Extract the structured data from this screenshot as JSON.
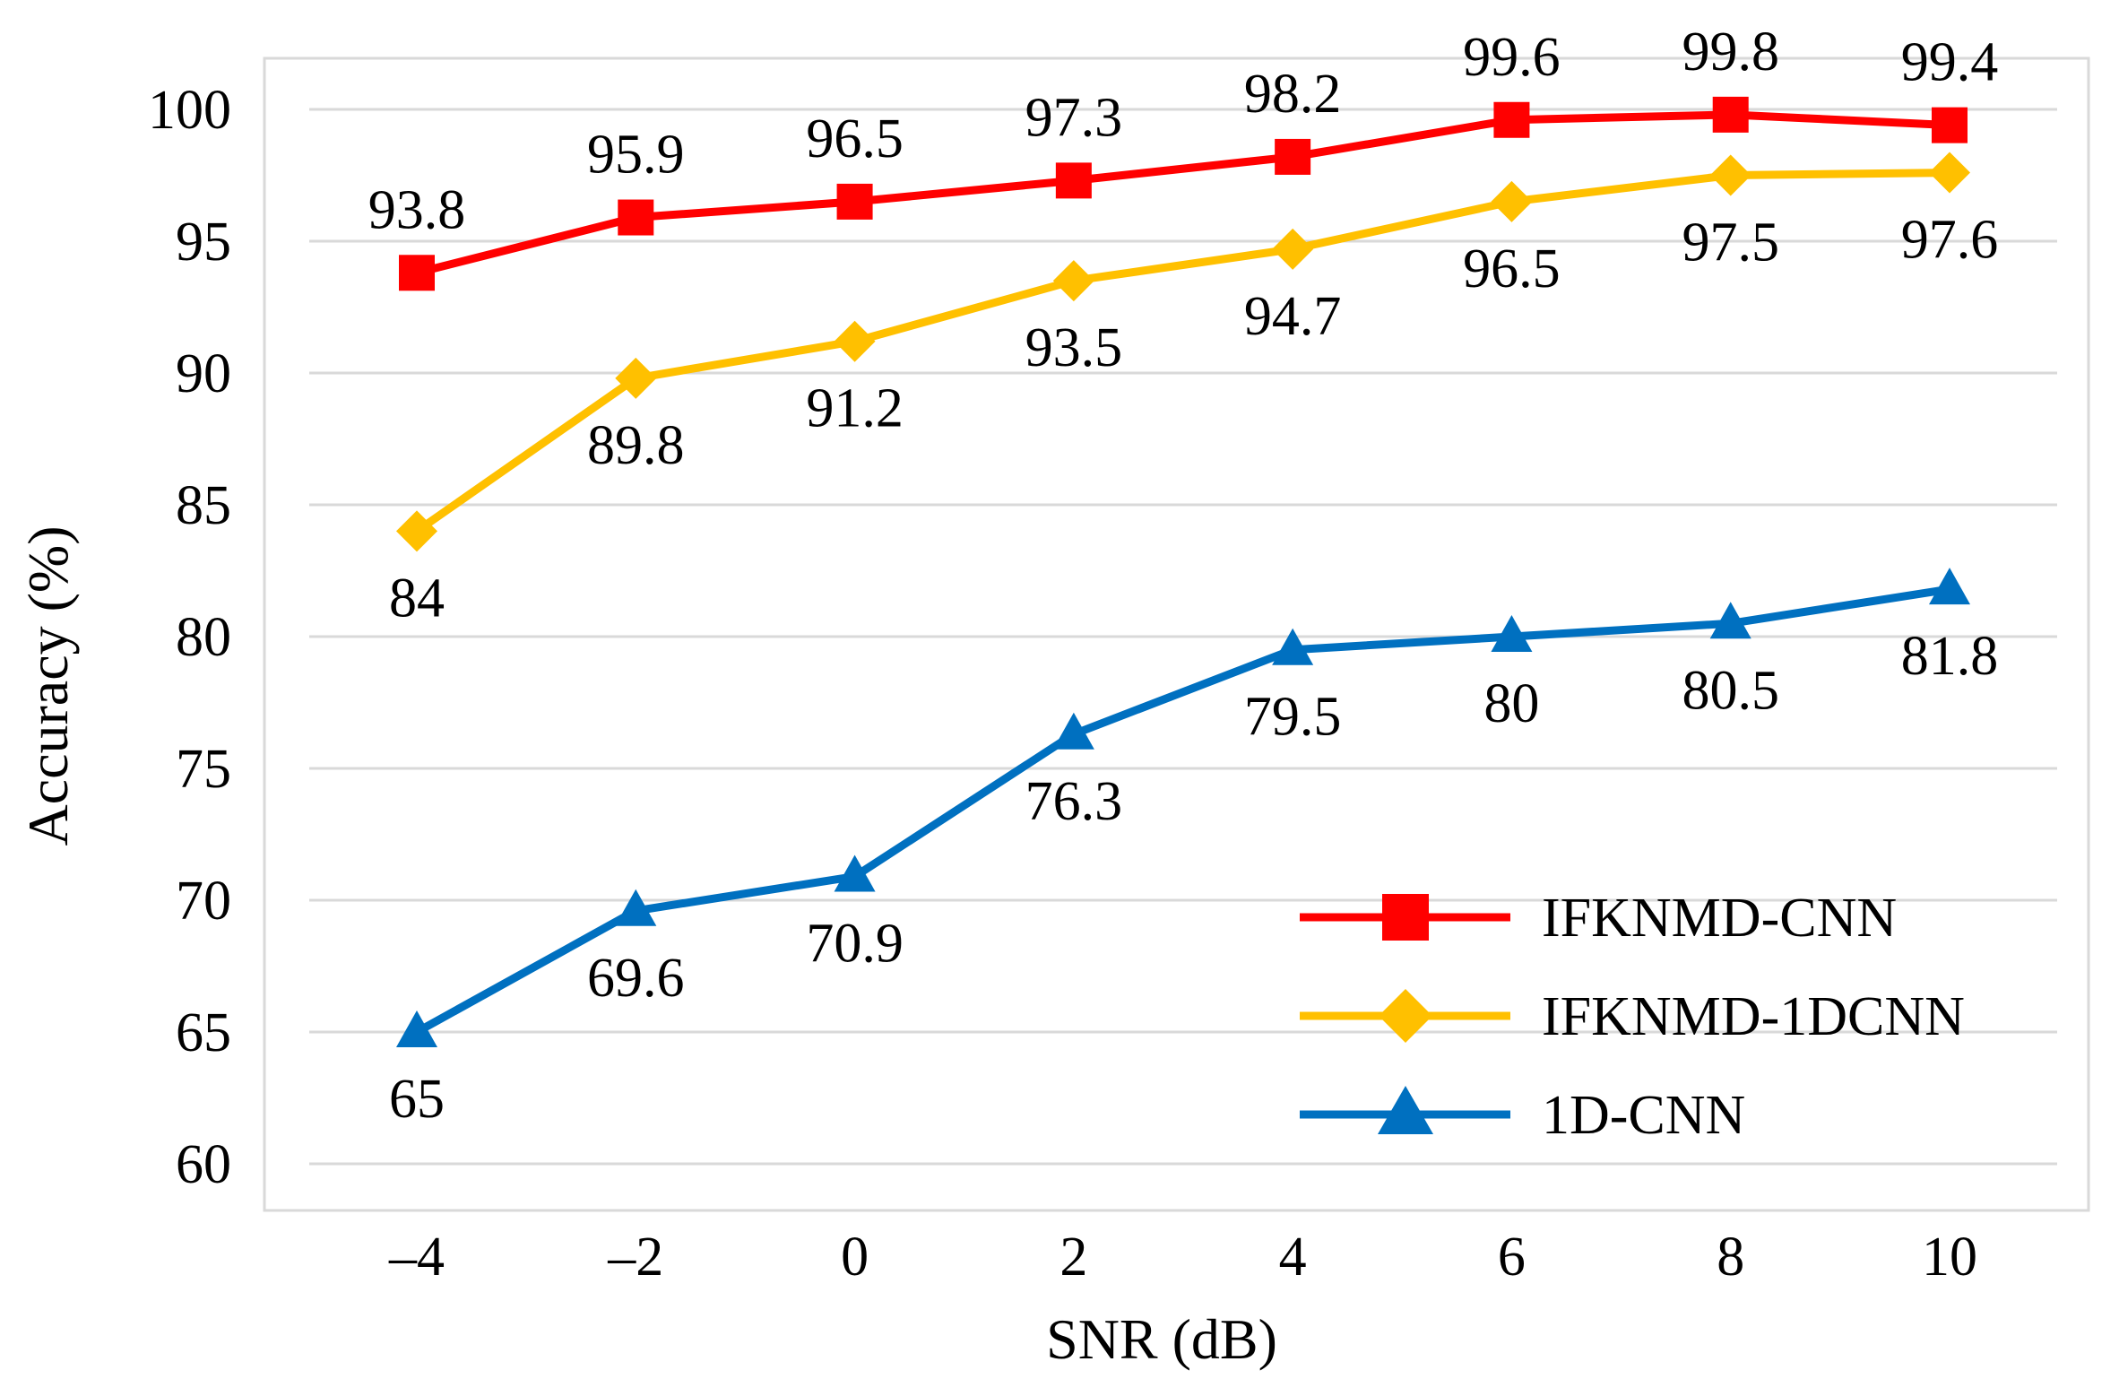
{
  "chart_data": {
    "type": "line",
    "title": "",
    "xlabel": "SNR (dB)",
    "ylabel": "Accuracy (%)",
    "categories": [
      "–4",
      "–2",
      "0",
      "2",
      "4",
      "6",
      "8",
      "10"
    ],
    "y_ticks": [
      "60",
      "65",
      "70",
      "75",
      "80",
      "85",
      "90",
      "95",
      "100"
    ],
    "ylim": [
      60,
      100
    ],
    "grid": true,
    "legend_position": "bottom-right",
    "series": [
      {
        "name": "IFKNMD-CNN",
        "color": "#ff0000",
        "marker": "square",
        "values": [
          93.8,
          95.9,
          96.5,
          97.3,
          98.2,
          99.6,
          99.8,
          99.4
        ],
        "labels": [
          "93.8",
          "95.9",
          "96.5",
          "97.3",
          "98.2",
          "99.6",
          "99.8",
          "99.4"
        ],
        "label_position": "above"
      },
      {
        "name": "IFKNMD-1DCNN",
        "color": "#ffc000",
        "marker": "diamond",
        "values": [
          84,
          89.8,
          91.2,
          93.5,
          94.7,
          96.5,
          97.5,
          97.6
        ],
        "labels": [
          "84",
          "89.8",
          "91.2",
          "93.5",
          "94.7",
          "96.5",
          "97.5",
          "97.6"
        ],
        "label_position": "below"
      },
      {
        "name": "1D-CNN",
        "color": "#0070c0",
        "marker": "triangle",
        "values": [
          65,
          69.6,
          70.9,
          76.3,
          79.5,
          80,
          80.5,
          81.8
        ],
        "labels": [
          "65",
          "69.6",
          "70.9",
          "76.3",
          "79.5",
          "80",
          "80.5",
          "81.8"
        ],
        "label_position": "below"
      }
    ]
  }
}
